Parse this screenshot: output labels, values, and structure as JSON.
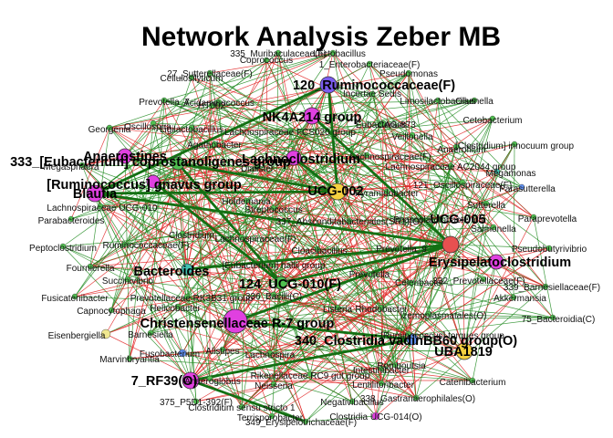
{
  "title": "Network Analysis Zeber MB",
  "colors": {
    "edge_positive": "#1f8a1f",
    "edge_negative": "#e02020",
    "node_magenta": "#e040e0",
    "node_purple": "#7b5cf0",
    "node_yellow": "#f5d040",
    "node_red": "#e85050",
    "node_teal": "#40c0b0",
    "node_pale_yellow": "#f0e890",
    "node_blue": "#6090f0",
    "node_green": "#50c050"
  },
  "nodes": [
    {
      "label": "120_Ruminococcaceae(F)",
      "emph": true,
      "color": "node_purple",
      "size": 9
    },
    {
      "label": "NK4A214 group",
      "emph": true,
      "color": "node_magenta",
      "size": 9
    },
    {
      "label": "Anaerostipes",
      "emph": true,
      "color": "node_magenta",
      "size": 8
    },
    {
      "label": "333_[Eubacterium] coprostanoligenes group",
      "emph": true,
      "color": "node_green",
      "size": 7
    },
    {
      "label": "Lachnoclostridium",
      "emph": true,
      "color": "node_magenta",
      "size": 8
    },
    {
      "label": "[Ruminococcus] gnavus group",
      "emph": true,
      "color": "node_magenta",
      "size": 7
    },
    {
      "label": "Blautia",
      "emph": true,
      "color": "node_magenta",
      "size": 9
    },
    {
      "label": "UCG-002",
      "emph": true,
      "color": "node_yellow",
      "size": 9
    },
    {
      "label": "UCG-005",
      "emph": true,
      "color": "node_red",
      "size": 9
    },
    {
      "label": "Erysipelatoclostridium",
      "emph": true,
      "color": "node_magenta",
      "size": 8
    },
    {
      "label": "Bacteroides",
      "emph": true,
      "color": "node_teal",
      "size": 6
    },
    {
      "label": "124_UCG-010(F)",
      "emph": true,
      "color": "node_green",
      "size": 7
    },
    {
      "label": "Christensenellaceae R-7 group",
      "emph": true,
      "color": "node_magenta",
      "size": 13
    },
    {
      "label": "340_Clostridia vadinBB60 group(O)",
      "emph": true,
      "color": "node_blue",
      "size": 6
    },
    {
      "label": "UBA1819",
      "emph": true,
      "color": "node_yellow",
      "size": 9
    },
    {
      "label": "7_RF39(O)",
      "emph": true,
      "color": "node_magenta",
      "size": 9
    },
    {
      "label": "Coprococcus",
      "emph": false,
      "color": "node_green",
      "size": 3
    },
    {
      "label": "335_Muribaculaceae(F)",
      "emph": false,
      "color": "node_green",
      "size": 3
    },
    {
      "label": "Lactobacillus",
      "emph": false,
      "color": "node_green",
      "size": 3
    },
    {
      "label": "1_Enterobacteriaceae(F)",
      "emph": false,
      "color": "node_green",
      "size": 3
    },
    {
      "label": "Pseudomonas",
      "emph": false,
      "color": "node_green",
      "size": 3
    },
    {
      "label": "Cellulosilyticum",
      "emph": false,
      "color": "node_green",
      "size": 3
    },
    {
      "label": "27_Sutterellaceae(F)",
      "emph": false,
      "color": "node_green",
      "size": 3
    },
    {
      "label": "Incertae Sedis",
      "emph": false,
      "color": "node_green",
      "size": 3
    },
    {
      "label": "Prevotella_7",
      "emph": false,
      "color": "node_green",
      "size": 3
    },
    {
      "label": "Acidaminococcus",
      "emph": false,
      "color": "node_green",
      "size": 3
    },
    {
      "label": "Limosilactobacillus",
      "emph": false,
      "color": "node_green",
      "size": 3
    },
    {
      "label": "Olsenella",
      "emph": false,
      "color": "node_green",
      "size": 3
    },
    {
      "label": "HT002",
      "emph": false,
      "color": "node_green",
      "size": 3
    },
    {
      "label": "Eubacterium",
      "emph": false,
      "color": "node_green",
      "size": 3
    },
    {
      "label": "CAG-873",
      "emph": false,
      "color": "node_green",
      "size": 3
    },
    {
      "label": "Cetobacterium",
      "emph": false,
      "color": "node_green",
      "size": 3
    },
    {
      "label": "Georgenia",
      "emph": false,
      "color": "node_green",
      "size": 3
    },
    {
      "label": "Oscillospira",
      "emph": false,
      "color": "node_green",
      "size": 3
    },
    {
      "label": "Ligilactobacillus",
      "emph": false,
      "color": "node_green",
      "size": 3
    },
    {
      "label": "Lachnospiraceae FCS020 group",
      "emph": false,
      "color": "node_green",
      "size": 3
    },
    {
      "label": "Veillonella",
      "emph": false,
      "color": "node_green",
      "size": 3
    },
    {
      "label": "[Clostridium] innocuum group",
      "emph": false,
      "color": "node_green",
      "size": 3
    },
    {
      "label": "Anaerofilum",
      "emph": false,
      "color": "node_green",
      "size": 3
    },
    {
      "label": "Agathobacter",
      "emph": false,
      "color": "node_green",
      "size": 3
    },
    {
      "label": "Lachnospiraceae(F)",
      "emph": false,
      "color": "node_green",
      "size": 3
    },
    {
      "label": "Lachnospiraceae AC2044 group",
      "emph": false,
      "color": "node_green",
      "size": 3
    },
    {
      "label": "Megasphaera",
      "emph": false,
      "color": "node_green",
      "size": 3
    },
    {
      "label": "Dialister",
      "emph": false,
      "color": "node_green",
      "size": 3
    },
    {
      "label": "Megamonas",
      "emph": false,
      "color": "node_teal",
      "size": 3
    },
    {
      "label": "121_Oscillospiraceae(F)",
      "emph": false,
      "color": "node_green",
      "size": 3
    },
    {
      "label": "Parasutterella",
      "emph": false,
      "color": "node_blue",
      "size": 3
    },
    {
      "label": "Pyramidobacter",
      "emph": false,
      "color": "node_green",
      "size": 3
    },
    {
      "label": "Sutterella",
      "emph": false,
      "color": "node_green",
      "size": 3
    },
    {
      "label": "Holdemania",
      "emph": false,
      "color": "node_green",
      "size": 3
    },
    {
      "label": "Lachnospiraceae UCG-010",
      "emph": false,
      "color": "node_green",
      "size": 3
    },
    {
      "label": "Streptococcus",
      "emph": false,
      "color": "node_green",
      "size": 3
    },
    {
      "label": "Parabacteroides",
      "emph": false,
      "color": "node_green",
      "size": 3
    },
    {
      "label": "337_Absconditabacteriales(SR1)(O)",
      "emph": false,
      "color": "node_green",
      "size": 3
    },
    {
      "label": "Phascolarctobacterium",
      "emph": false,
      "color": "node_green",
      "size": 3
    },
    {
      "label": "Paraprevotella",
      "emph": false,
      "color": "node_green",
      "size": 3
    },
    {
      "label": "Salmonella",
      "emph": false,
      "color": "node_green",
      "size": 3
    },
    {
      "label": "Peptoclostridium",
      "emph": false,
      "color": "node_green",
      "size": 3
    },
    {
      "label": "Ruminococcaceae(F)",
      "emph": false,
      "color": "node_green",
      "size": 3
    },
    {
      "label": "Lachnospiraceae(F)",
      "emph": false,
      "color": "node_green",
      "size": 3
    },
    {
      "label": "Clostridium",
      "emph": false,
      "color": "node_green",
      "size": 3
    },
    {
      "label": "Pseudobutyrivibrio",
      "emph": false,
      "color": "node_green",
      "size": 3
    },
    {
      "label": "Fournierella",
      "emph": false,
      "color": "node_green",
      "size": 3
    },
    {
      "label": "[Eubacterium] hallii group",
      "emph": false,
      "color": "node_green",
      "size": 3
    },
    {
      "label": "Cloacibacillus",
      "emph": false,
      "color": "node_green",
      "size": 3
    },
    {
      "label": "Prevotella_9",
      "emph": false,
      "color": "node_green",
      "size": 3
    },
    {
      "label": "Succinivibrio",
      "emph": false,
      "color": "node_green",
      "size": 3
    },
    {
      "label": "Prevotella",
      "emph": false,
      "color": "node_green",
      "size": 3
    },
    {
      "label": "Fusicatenibacter",
      "emph": false,
      "color": "node_green",
      "size": 3
    },
    {
      "label": "Prevotellaceae RK3B31 group",
      "emph": false,
      "color": "node_green",
      "size": 3
    },
    {
      "label": "336_Bacilli(C)",
      "emph": false,
      "color": "node_green",
      "size": 3
    },
    {
      "label": "Celeribacter",
      "emph": false,
      "color": "node_green",
      "size": 3
    },
    {
      "label": "332_Prevotellaceae(F)",
      "emph": false,
      "color": "node_green",
      "size": 3
    },
    {
      "label": "339_Barnesiellaceae(F)",
      "emph": false,
      "color": "node_green",
      "size": 3
    },
    {
      "label": "Akkermansia",
      "emph": false,
      "color": "node_green",
      "size": 3
    },
    {
      "label": "Capnocytophaga",
      "emph": false,
      "color": "node_green",
      "size": 3
    },
    {
      "label": "Helicobacter",
      "emph": false,
      "color": "node_green",
      "size": 3
    },
    {
      "label": "Listeria",
      "emph": false,
      "color": "node_green",
      "size": 3
    },
    {
      "label": "Rhodobacter",
      "emph": false,
      "color": "node_green",
      "size": 3
    },
    {
      "label": "Izemoplasmatales(O)",
      "emph": false,
      "color": "node_green",
      "size": 3
    },
    {
      "label": "75_Bacteroidia(C)",
      "emph": false,
      "color": "node_green",
      "size": 3
    },
    {
      "label": "Eisenbergiella",
      "emph": false,
      "color": "node_pale_yellow",
      "size": 5
    },
    {
      "label": "Barnesiella",
      "emph": false,
      "color": "node_green",
      "size": 3
    },
    {
      "label": "[Ruminococcus] torques group",
      "emph": false,
      "color": "node_green",
      "size": 3
    },
    {
      "label": "Marvinbryantia",
      "emph": false,
      "color": "node_green",
      "size": 3
    },
    {
      "label": "Fusobacterium",
      "emph": false,
      "color": "node_blue",
      "size": 4
    },
    {
      "label": "Alistipes",
      "emph": false,
      "color": "node_green",
      "size": 3
    },
    {
      "label": "Lachnospira",
      "emph": false,
      "color": "node_green",
      "size": 3
    },
    {
      "label": "Anaeroglobus",
      "emph": false,
      "color": "node_green",
      "size": 3
    },
    {
      "label": "Rikenellaceae RC9 gut group",
      "emph": false,
      "color": "node_green",
      "size": 3
    },
    {
      "label": "Intestinibacter",
      "emph": false,
      "color": "node_green",
      "size": 3
    },
    {
      "label": "Romboutsia",
      "emph": false,
      "color": "node_green",
      "size": 3
    },
    {
      "label": "Neisseria",
      "emph": false,
      "color": "node_green",
      "size": 3
    },
    {
      "label": "Lentilitoribacter",
      "emph": false,
      "color": "node_green",
      "size": 3
    },
    {
      "label": "Catenibacterium",
      "emph": false,
      "color": "node_green",
      "size": 3
    },
    {
      "label": "375_P5D1-392(F)",
      "emph": false,
      "color": "node_green",
      "size": 3
    },
    {
      "label": "Clostridium sensu stricto 1",
      "emph": false,
      "color": "node_green",
      "size": 3
    },
    {
      "label": "Negativibacillus",
      "emph": false,
      "color": "node_green",
      "size": 3
    },
    {
      "label": "338_Gastranaerophilales(O)",
      "emph": false,
      "color": "node_green",
      "size": 3
    },
    {
      "label": "Terrisporobacter",
      "emph": false,
      "color": "node_green",
      "size": 3
    },
    {
      "label": "349_Erysipelotrichaceae(F)",
      "emph": false,
      "color": "node_green",
      "size": 3
    },
    {
      "label": "Clostridia UCG-014(O)",
      "emph": false,
      "color": "node_magenta",
      "size": 4
    }
  ]
}
